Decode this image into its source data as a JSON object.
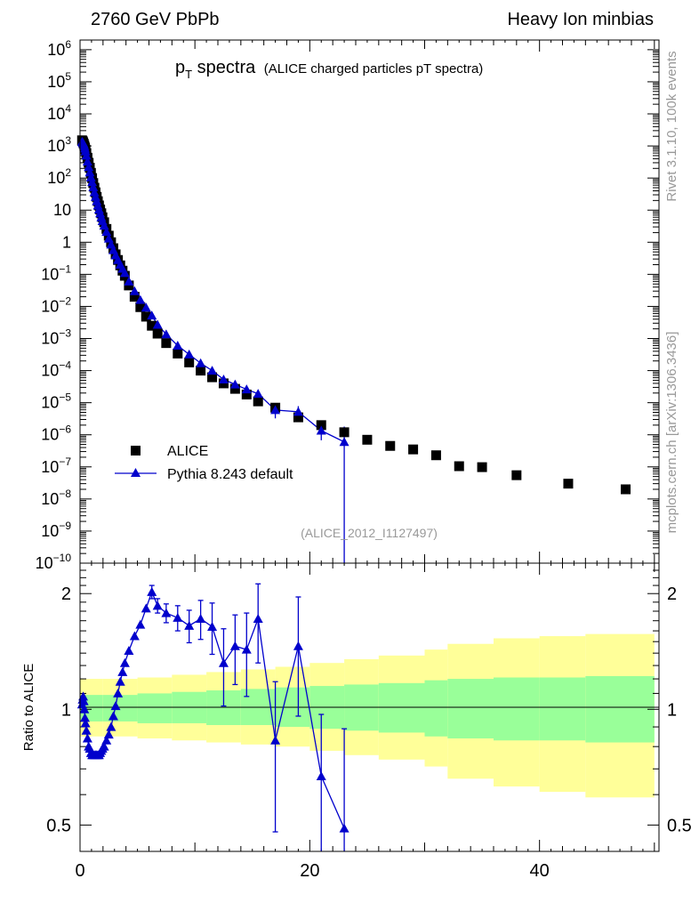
{
  "header": {
    "left": "2760 GeV PbPb",
    "right": "Heavy Ion minbias"
  },
  "title": {
    "main": "p",
    "sub": "T",
    "rest": " spectra",
    "small": "(ALICE charged particles pT spectra)"
  },
  "side_labels": {
    "rivet": "Rivet 3.1.10,  100k events",
    "mcplots": "mcplots.cern.ch [arXiv:1306.3436]"
  },
  "analysis_tag": "(ALICE_2012_I1127497)",
  "legend": {
    "data_label": "ALICE",
    "mc_label": "Pythia 8.243 default"
  },
  "ratio_ylabel": "Ratio to ALICE",
  "colors": {
    "data": "#000000",
    "mc": "#0000cc",
    "band_inner": "#99ff99",
    "band_outer": "#ffff99"
  },
  "chart_data": [
    {
      "type": "scatter",
      "name": "main",
      "yscale": "log",
      "xlim": [
        0,
        50.4
      ],
      "ylim": [
        1e-10,
        2000000.0
      ],
      "ytick_labels": [
        {
          "v": 1000000.0,
          "label": "10",
          "exp": "6"
        },
        {
          "v": 100000.0,
          "label": "10",
          "exp": "5"
        },
        {
          "v": 10000.0,
          "label": "10",
          "exp": "4"
        },
        {
          "v": 1000.0,
          "label": "10",
          "exp": "3"
        },
        {
          "v": 100.0,
          "label": "10",
          "exp": "2"
        },
        {
          "v": 10,
          "label": "10",
          "exp": ""
        },
        {
          "v": 1,
          "label": "1",
          "exp": ""
        },
        {
          "v": 0.1,
          "label": "10",
          "exp": "−1"
        },
        {
          "v": 0.01,
          "label": "10",
          "exp": "−2"
        },
        {
          "v": 0.001,
          "label": "10",
          "exp": "−3"
        },
        {
          "v": 0.0001,
          "label": "10",
          "exp": "−4"
        },
        {
          "v": 1e-05,
          "label": "10",
          "exp": "−5"
        },
        {
          "v": 1e-06,
          "label": "10",
          "exp": "−6"
        },
        {
          "v": 1e-07,
          "label": "10",
          "exp": "−7"
        },
        {
          "v": 1e-08,
          "label": "10",
          "exp": "−8"
        },
        {
          "v": 1e-09,
          "label": "10",
          "exp": "−9"
        },
        {
          "v": 1e-10,
          "label": "10",
          "exp": "−10"
        }
      ],
      "series": [
        {
          "name": "ALICE",
          "marker": "square",
          "points": [
            [
              0.175,
              1500
            ],
            [
              0.225,
              1420
            ],
            [
              0.275,
              1300
            ],
            [
              0.325,
              1170
            ],
            [
              0.375,
              1030
            ],
            [
              0.425,
              900
            ],
            [
              0.475,
              770
            ],
            [
              0.55,
              600
            ],
            [
              0.65,
              430
            ],
            [
              0.75,
              300
            ],
            [
              0.85,
              210
            ],
            [
              0.95,
              145
            ],
            [
              1.05,
              100
            ],
            [
              1.15,
              70
            ],
            [
              1.25,
              50
            ],
            [
              1.35,
              36
            ],
            [
              1.45,
              26
            ],
            [
              1.55,
              19
            ],
            [
              1.65,
              14
            ],
            [
              1.75,
              10.5
            ],
            [
              1.85,
              8
            ],
            [
              1.95,
              6
            ],
            [
              2.1,
              4.2
            ],
            [
              2.3,
              2.6
            ],
            [
              2.5,
              1.6
            ],
            [
              2.7,
              1.0
            ],
            [
              2.9,
              0.65
            ],
            [
              3.1,
              0.42
            ],
            [
              3.3,
              0.28
            ],
            [
              3.5,
              0.19
            ],
            [
              3.7,
              0.13
            ],
            [
              3.9,
              0.09
            ],
            [
              4.25,
              0.045
            ],
            [
              4.75,
              0.02
            ],
            [
              5.25,
              0.0095
            ],
            [
              5.75,
              0.0048
            ],
            [
              6.25,
              0.0025
            ],
            [
              6.75,
              0.00142
            ],
            [
              7.5,
              0.00072
            ],
            [
              8.5,
              0.00034
            ],
            [
              9.5,
              0.00018
            ],
            [
              10.5,
              0.0001
            ],
            [
              11.5,
              6.2e-05
            ],
            [
              12.5,
              4e-05
            ],
            [
              13.5,
              2.7e-05
            ],
            [
              14.5,
              1.8e-05
            ],
            [
              15.5,
              1.1e-05
            ],
            [
              17.0,
              7e-06
            ],
            [
              19.0,
              3.5e-06
            ],
            [
              21.0,
              2e-06
            ],
            [
              23.0,
              1.2e-06
            ],
            [
              25.0,
              7e-07
            ],
            [
              27.0,
              4.5e-07
            ],
            [
              29.0,
              3.5e-07
            ],
            [
              31.0,
              2.3e-07
            ],
            [
              33.0,
              1.05e-07
            ],
            [
              35.0,
              9.8e-08
            ],
            [
              38.0,
              5.5e-08
            ],
            [
              42.5,
              3e-08
            ],
            [
              47.5,
              2e-08
            ]
          ]
        },
        {
          "name": "Pythia 8.243 default",
          "marker": "triangle",
          "points": [
            [
              0.175,
              1350
            ],
            [
              0.225,
              1300
            ],
            [
              0.275,
              1230
            ],
            [
              0.325,
              1120
            ],
            [
              0.375,
              980
            ],
            [
              0.425,
              830
            ],
            [
              0.475,
              680
            ],
            [
              0.55,
              500
            ],
            [
              0.65,
              330
            ],
            [
              0.75,
              220
            ],
            [
              0.85,
              150
            ],
            [
              0.95,
              105
            ],
            [
              1.05,
              75
            ],
            [
              1.15,
              52
            ],
            [
              1.25,
              36
            ],
            [
              1.35,
              26
            ],
            [
              1.45,
              19
            ],
            [
              1.55,
              14
            ],
            [
              1.65,
              10.5
            ],
            [
              1.75,
              8
            ],
            [
              1.85,
              6
            ],
            [
              1.95,
              4.6
            ],
            [
              2.1,
              3.3
            ],
            [
              2.3,
              2.1
            ],
            [
              2.5,
              1.3
            ],
            [
              2.7,
              0.85
            ],
            [
              2.9,
              0.57
            ],
            [
              3.1,
              0.39
            ],
            [
              3.3,
              0.28
            ],
            [
              3.5,
              0.2
            ],
            [
              3.7,
              0.15
            ],
            [
              3.9,
              0.11
            ],
            [
              4.25,
              0.06
            ],
            [
              4.75,
              0.03
            ],
            [
              5.25,
              0.016
            ],
            [
              5.75,
              0.0092
            ],
            [
              6.25,
              0.0052
            ],
            [
              6.75,
              0.0027
            ],
            [
              7.5,
              0.00135
            ],
            [
              8.5,
              0.0006
            ],
            [
              9.5,
              0.00032
            ],
            [
              10.5,
              0.00017
            ],
            [
              11.5,
              0.0001
            ],
            [
              12.5,
              5.3e-05
            ],
            [
              13.5,
              3.7e-05
            ],
            [
              14.5,
              2.6e-05
            ],
            [
              15.5,
              1.9e-05
            ],
            [
              17.0,
              5.9e-06
            ],
            [
              19.0,
              5.2e-06
            ],
            [
              21.0,
              1.35e-06
            ],
            [
              23.0,
              6e-07
            ]
          ]
        }
      ]
    },
    {
      "type": "scatter",
      "name": "ratio",
      "ylabel": "Ratio to ALICE",
      "yscale": "log",
      "xlim": [
        0,
        50.4
      ],
      "ylim": [
        0.427,
        2.4
      ],
      "xticks": [
        0,
        20,
        40
      ],
      "yticks": [
        0.5,
        1,
        2
      ],
      "reference_line": 1,
      "band": {
        "edges": [
          0,
          2,
          5,
          8,
          11,
          14,
          17,
          20,
          23,
          26,
          30,
          32,
          36,
          40,
          44,
          50
        ],
        "inner_lo": [
          0.93,
          0.93,
          0.92,
          0.92,
          0.91,
          0.91,
          0.9,
          0.89,
          0.88,
          0.87,
          0.85,
          0.84,
          0.83,
          0.83,
          0.82
        ],
        "inner_hi": [
          1.09,
          1.09,
          1.1,
          1.11,
          1.12,
          1.13,
          1.14,
          1.15,
          1.16,
          1.17,
          1.19,
          1.2,
          1.21,
          1.21,
          1.22
        ],
        "outer_lo": [
          0.85,
          0.85,
          0.84,
          0.83,
          0.82,
          0.81,
          0.8,
          0.78,
          0.76,
          0.74,
          0.71,
          0.66,
          0.63,
          0.61,
          0.59
        ],
        "outer_hi": [
          1.2,
          1.2,
          1.21,
          1.23,
          1.25,
          1.27,
          1.29,
          1.32,
          1.35,
          1.38,
          1.43,
          1.48,
          1.53,
          1.55,
          1.57
        ]
      },
      "series": [
        {
          "name": "Pythia 8.243 default",
          "points": [
            [
              0.175,
              1.03,
              0.03
            ],
            [
              0.225,
              1.06,
              0.03
            ],
            [
              0.275,
              1.08,
              0.03
            ],
            [
              0.325,
              1.05,
              0.03
            ],
            [
              0.375,
              1.0,
              0.03
            ],
            [
              0.425,
              0.95,
              0.03
            ],
            [
              0.475,
              0.92,
              0.03
            ],
            [
              0.55,
              0.88,
              0.02
            ],
            [
              0.65,
              0.84,
              0.02
            ],
            [
              0.75,
              0.8,
              0.02
            ],
            [
              0.85,
              0.79,
              0.02
            ],
            [
              0.95,
              0.77,
              0.02
            ],
            [
              1.05,
              0.76,
              0.02
            ],
            [
              1.15,
              0.76,
              0.02
            ],
            [
              1.25,
              0.76,
              0.02
            ],
            [
              1.35,
              0.76,
              0.02
            ],
            [
              1.45,
              0.76,
              0.02
            ],
            [
              1.55,
              0.76,
              0.02
            ],
            [
              1.65,
              0.76,
              0.02
            ],
            [
              1.75,
              0.77,
              0.02
            ],
            [
              1.85,
              0.78,
              0.02
            ],
            [
              1.95,
              0.79,
              0.02
            ],
            [
              2.1,
              0.8,
              0.02
            ],
            [
              2.3,
              0.83,
              0.02
            ],
            [
              2.5,
              0.86,
              0.02
            ],
            [
              2.7,
              0.9,
              0.02
            ],
            [
              2.9,
              0.96,
              0.02
            ],
            [
              3.1,
              1.02,
              0.02
            ],
            [
              3.3,
              1.1,
              0.02
            ],
            [
              3.5,
              1.18,
              0.03
            ],
            [
              3.7,
              1.25,
              0.03
            ],
            [
              3.9,
              1.32,
              0.03
            ],
            [
              4.25,
              1.42,
              0.04
            ],
            [
              4.75,
              1.55,
              0.04
            ],
            [
              5.25,
              1.66,
              0.05
            ],
            [
              5.75,
              1.83,
              0.06
            ],
            [
              6.25,
              2.02,
              0.08
            ],
            [
              6.75,
              1.86,
              0.08
            ],
            [
              7.5,
              1.78,
              0.1
            ],
            [
              8.5,
              1.73,
              0.13
            ],
            [
              9.5,
              1.65,
              0.16
            ],
            [
              10.5,
              1.72,
              0.2
            ],
            [
              11.5,
              1.64,
              0.25
            ],
            [
              12.5,
              1.32,
              0.3
            ],
            [
              13.5,
              1.46,
              0.3
            ],
            [
              14.5,
              1.43,
              0.35
            ],
            [
              15.5,
              1.72,
              0.4
            ],
            [
              17.0,
              0.83,
              0.35
            ],
            [
              19.0,
              1.46,
              0.5
            ],
            [
              21.0,
              0.67,
              0.3
            ],
            [
              23.0,
              0.49,
              0.4
            ]
          ]
        }
      ]
    }
  ]
}
